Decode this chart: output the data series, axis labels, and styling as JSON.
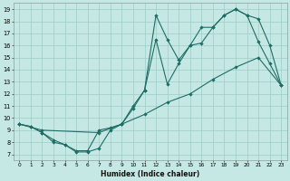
{
  "xlabel": "Humidex (Indice chaleur)",
  "bg_color": "#c5e8e4",
  "grid_color": "#9ececa",
  "line_color": "#1e6e65",
  "xlim_min": -0.5,
  "xlim_max": 23.5,
  "ylim_min": 6.5,
  "ylim_max": 19.5,
  "xtick_vals": [
    0,
    1,
    2,
    3,
    4,
    5,
    6,
    7,
    8,
    9,
    10,
    11,
    12,
    13,
    14,
    15,
    16,
    17,
    18,
    19,
    20,
    21,
    22,
    23
  ],
  "ytick_vals": [
    7,
    8,
    9,
    10,
    11,
    12,
    13,
    14,
    15,
    16,
    17,
    18,
    19
  ],
  "line1_x": [
    0,
    1,
    2,
    3,
    4,
    5,
    6,
    7,
    8,
    9,
    10,
    11,
    12,
    13,
    14,
    15,
    16,
    17,
    18,
    19,
    20,
    21,
    22,
    23
  ],
  "line1_y": [
    9.5,
    9.3,
    8.8,
    8.2,
    7.8,
    7.3,
    7.3,
    9.0,
    9.2,
    9.5,
    11.0,
    12.3,
    18.5,
    16.5,
    14.8,
    16.0,
    17.5,
    17.5,
    18.5,
    19.0,
    18.5,
    16.3,
    14.5,
    12.7
  ],
  "line2_x": [
    0,
    1,
    2,
    3,
    4,
    5,
    6,
    7,
    8,
    9,
    10,
    11,
    12,
    13,
    14,
    15,
    16,
    17,
    18,
    19,
    20,
    21,
    22,
    23
  ],
  "line2_y": [
    9.5,
    9.3,
    8.8,
    8.0,
    7.8,
    7.2,
    7.2,
    7.5,
    9.0,
    9.5,
    10.8,
    12.3,
    16.5,
    12.8,
    14.5,
    16.0,
    16.2,
    17.5,
    18.5,
    19.0,
    18.5,
    18.2,
    16.0,
    12.7
  ],
  "line3_x": [
    0,
    2,
    7,
    9,
    11,
    13,
    15,
    17,
    19,
    21,
    23
  ],
  "line3_y": [
    9.5,
    9.0,
    8.8,
    9.5,
    10.3,
    11.3,
    12.0,
    13.2,
    14.2,
    15.0,
    12.7
  ]
}
